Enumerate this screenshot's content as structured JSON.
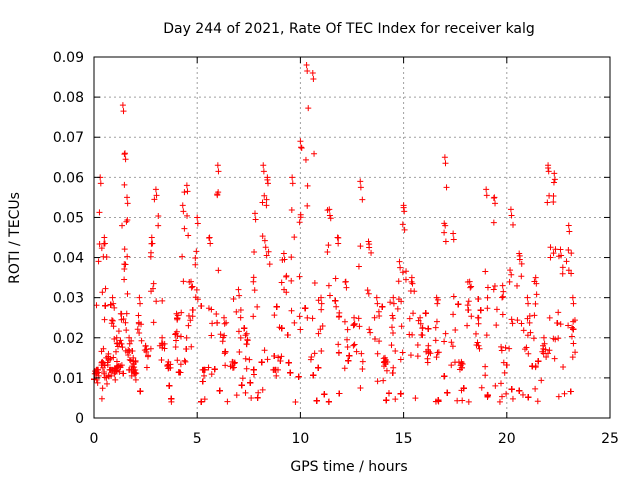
{
  "chart_data": {
    "type": "scatter",
    "title": "Day 244 of 2021, Rate Of TEC Index for receiver kalg",
    "xlabel": "GPS time / hours",
    "ylabel": "ROTI / TECUs",
    "xlim": [
      0,
      25
    ],
    "ylim": [
      0,
      0.09
    ],
    "xticks": [
      "0",
      "5",
      "10",
      "15",
      "20",
      "25"
    ],
    "yticks": [
      "0",
      "0.01",
      "0.02",
      "0.03",
      "0.04",
      "0.05",
      "0.06",
      "0.07",
      "0.08",
      "0.09"
    ],
    "grid": true,
    "marker": "+",
    "color": "#ff0000",
    "data_range_x": [
      0,
      23.3
    ],
    "series": [
      {
        "x": [
          0.1,
          0.2,
          0.3,
          0.4,
          0.5,
          0.6,
          0.7,
          0.8,
          0.9,
          1.0,
          1.1,
          1.2,
          1.3,
          1.4,
          1.5,
          1.6,
          1.7,
          1.8,
          1.9,
          2.0,
          2.2,
          2.5,
          2.8,
          3.0,
          3.3,
          3.6,
          4.0,
          4.3,
          4.5,
          4.7,
          5.0,
          5.3,
          5.6,
          6.0,
          6.3,
          6.7,
          7.0,
          7.4,
          7.8,
          8.2,
          8.4,
          8.8,
          9.2,
          9.6,
          10.0,
          10.3,
          10.6,
          11.0,
          11.4,
          11.8,
          12.2,
          12.6,
          12.9,
          13.3,
          13.7,
          14.1,
          14.5,
          14.8,
          15.0,
          15.4,
          15.8,
          16.2,
          16.6,
          17.0,
          17.4,
          17.8,
          18.2,
          18.6,
          19.0,
          19.4,
          19.8,
          20.2,
          20.6,
          21.0,
          21.4,
          21.8,
          22.0,
          22.3,
          22.6,
          23.0,
          23.2
        ],
        "y": [
          0.011,
          0.012,
          0.06,
          0.014,
          0.045,
          0.01,
          0.016,
          0.012,
          0.03,
          0.011,
          0.02,
          0.013,
          0.026,
          0.078,
          0.066,
          0.055,
          0.02,
          0.012,
          0.015,
          0.011,
          0.03,
          0.018,
          0.045,
          0.057,
          0.02,
          0.014,
          0.026,
          0.053,
          0.058,
          0.034,
          0.05,
          0.012,
          0.045,
          0.063,
          0.025,
          0.014,
          0.032,
          0.021,
          0.051,
          0.063,
          0.06,
          0.012,
          0.041,
          0.06,
          0.069,
          0.088,
          0.086,
          0.03,
          0.052,
          0.045,
          0.034,
          0.025,
          0.059,
          0.044,
          0.03,
          0.015,
          0.03,
          0.039,
          0.053,
          0.035,
          0.025,
          0.018,
          0.03,
          0.065,
          0.046,
          0.014,
          0.034,
          0.025,
          0.057,
          0.055,
          0.033,
          0.052,
          0.041,
          0.03,
          0.035,
          0.02,
          0.063,
          0.061,
          0.042,
          0.048,
          0.03
        ]
      }
    ],
    "notes_seed": 244
  }
}
